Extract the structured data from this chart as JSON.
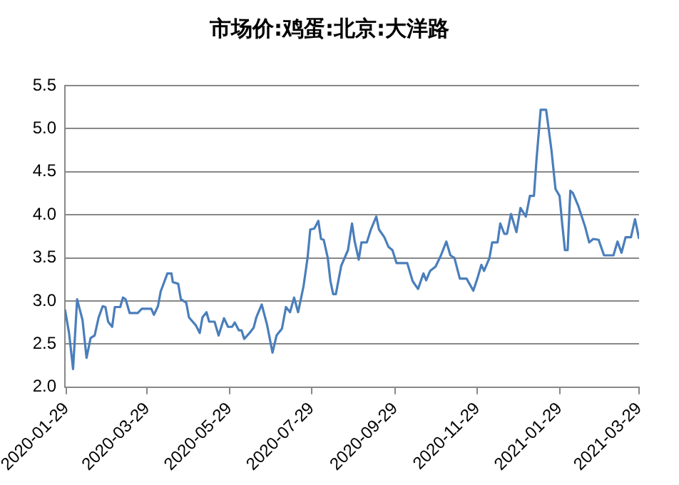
{
  "chart_data": {
    "type": "line",
    "title": "市场价:鸡蛋:北京:大洋路",
    "x": [
      "2020-01-28",
      "2020-01-31",
      "2020-02-03",
      "2020-02-06",
      "2020-02-08",
      "2020-02-10",
      "2020-02-13",
      "2020-02-16",
      "2020-02-19",
      "2020-02-22",
      "2020-02-25",
      "2020-02-27",
      "2020-02-29",
      "2020-03-03",
      "2020-03-05",
      "2020-03-09",
      "2020-03-11",
      "2020-03-13",
      "2020-03-16",
      "2020-03-22",
      "2020-03-25",
      "2020-04-01",
      "2020-04-03",
      "2020-04-06",
      "2020-04-08",
      "2020-04-13",
      "2020-04-16",
      "2020-04-17",
      "2020-04-21",
      "2020-04-23",
      "2020-04-27",
      "2020-04-29",
      "2020-05-04",
      "2020-05-07",
      "2020-05-09",
      "2020-05-12",
      "2020-05-14",
      "2020-05-18",
      "2020-05-21",
      "2020-05-25",
      "2020-05-28",
      "2020-05-31",
      "2020-06-02",
      "2020-06-05",
      "2020-06-07",
      "2020-06-09",
      "2020-06-13",
      "2020-06-16",
      "2020-06-18",
      "2020-06-22",
      "2020-06-26",
      "2020-06-30",
      "2020-07-03",
      "2020-07-07",
      "2020-07-10",
      "2020-07-13",
      "2020-07-16",
      "2020-07-19",
      "2020-07-23",
      "2020-07-26",
      "2020-07-28",
      "2020-07-31",
      "2020-08-03",
      "2020-08-05",
      "2020-08-07",
      "2020-08-10",
      "2020-08-12",
      "2020-08-14",
      "2020-08-16",
      "2020-08-20",
      "2020-08-25",
      "2020-08-28",
      "2020-08-30",
      "2020-09-02",
      "2020-09-04",
      "2020-09-08",
      "2020-09-11",
      "2020-09-15",
      "2020-09-17",
      "2020-09-21",
      "2020-09-24",
      "2020-09-27",
      "2020-09-30",
      "2020-10-08",
      "2020-10-12",
      "2020-10-16",
      "2020-10-20",
      "2020-10-22",
      "2020-10-25",
      "2020-10-29",
      "2020-11-02",
      "2020-11-06",
      "2020-11-09",
      "2020-11-12",
      "2020-11-16",
      "2020-11-21",
      "2020-11-26",
      "2020-11-29",
      "2020-12-02",
      "2020-12-04",
      "2020-12-08",
      "2020-12-10",
      "2020-12-14",
      "2020-12-16",
      "2020-12-19",
      "2020-12-21",
      "2020-12-24",
      "2020-12-28",
      "2020-12-31",
      "2021-01-04",
      "2021-01-07",
      "2021-01-10",
      "2021-01-12",
      "2021-01-15",
      "2021-01-19",
      "2021-01-21",
      "2021-01-23",
      "2021-01-26",
      "2021-01-29",
      "2021-01-31",
      "2021-02-02",
      "2021-02-04",
      "2021-02-06",
      "2021-02-08",
      "2021-02-12",
      "2021-02-17",
      "2021-02-20",
      "2021-02-23",
      "2021-02-27",
      "2021-03-03",
      "2021-03-10",
      "2021-03-13",
      "2021-03-16",
      "2021-03-19",
      "2021-03-23",
      "2021-03-26",
      "2021-03-29"
    ],
    "series": [
      {
        "color": "#4a7ebb",
        "values": [
          2.9,
          2.63,
          2.21,
          3.02,
          2.9,
          2.78,
          2.34,
          2.57,
          2.6,
          2.81,
          2.94,
          2.93,
          2.76,
          2.7,
          2.93,
          2.93,
          3.04,
          3.02,
          2.86,
          2.86,
          2.91,
          2.91,
          2.84,
          2.94,
          3.11,
          3.32,
          3.32,
          3.22,
          3.2,
          3.02,
          2.98,
          2.81,
          2.72,
          2.63,
          2.81,
          2.87,
          2.76,
          2.76,
          2.6,
          2.8,
          2.7,
          2.7,
          2.75,
          2.66,
          2.66,
          2.56,
          2.63,
          2.69,
          2.81,
          2.96,
          2.72,
          2.4,
          2.6,
          2.68,
          2.93,
          2.87,
          3.04,
          2.87,
          3.17,
          3.5,
          3.83,
          3.84,
          3.93,
          3.72,
          3.71,
          3.5,
          3.23,
          3.08,
          3.08,
          3.41,
          3.59,
          3.9,
          3.69,
          3.48,
          3.68,
          3.68,
          3.83,
          3.98,
          3.83,
          3.74,
          3.63,
          3.59,
          3.44,
          3.44,
          3.23,
          3.14,
          3.32,
          3.24,
          3.35,
          3.4,
          3.53,
          3.69,
          3.53,
          3.5,
          3.26,
          3.26,
          3.12,
          3.26,
          3.42,
          3.35,
          3.5,
          3.68,
          3.68,
          3.9,
          3.78,
          3.78,
          4.01,
          3.8,
          4.08,
          3.98,
          4.22,
          4.22,
          4.66,
          5.22,
          5.22,
          4.99,
          4.75,
          4.3,
          4.22,
          3.89,
          3.59,
          3.59,
          4.28,
          4.25,
          4.1,
          3.86,
          3.68,
          3.72,
          3.71,
          3.53,
          3.53,
          3.69,
          3.56,
          3.74,
          3.74,
          3.95,
          3.72
        ]
      }
    ],
    "xlim": [
      "2020-01-28",
      "2021-03-29"
    ],
    "xticks": [
      "2020-01-29",
      "2020-03-29",
      "2020-05-29",
      "2020-07-29",
      "2020-09-29",
      "2020-11-29",
      "2021-01-29",
      "2021-03-29"
    ],
    "ylim": [
      2.0,
      5.5
    ],
    "yticks": [
      {
        "value": 2.0,
        "label": "2.0"
      },
      {
        "value": 2.5,
        "label": "2.5"
      },
      {
        "value": 3.0,
        "label": "3.0"
      },
      {
        "value": 3.5,
        "label": "3.5"
      },
      {
        "value": 4.0,
        "label": "4.0"
      },
      {
        "value": 4.5,
        "label": "4.5"
      },
      {
        "value": 5.0,
        "label": "5.0"
      },
      {
        "value": 5.5,
        "label": "5.5"
      }
    ],
    "grid": "y",
    "legend": false,
    "marker": "none",
    "line_style": "solid"
  }
}
